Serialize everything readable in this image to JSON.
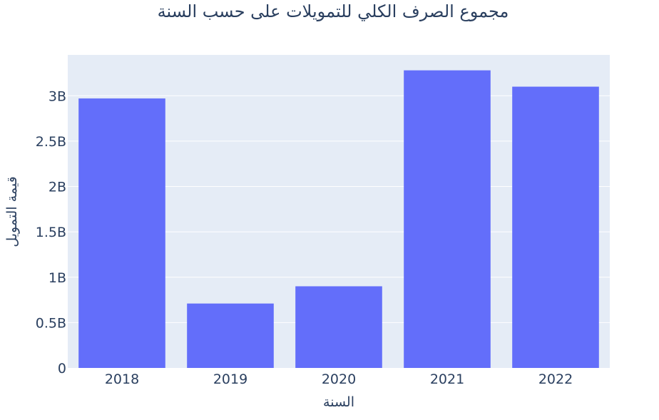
{
  "chart_data": {
    "type": "bar",
    "title": "مجموع الصرف الكلي للتمويلات على حسب السنة",
    "xlabel": "السنة",
    "ylabel": "قيمة التمويل",
    "categories": [
      "2018",
      "2019",
      "2020",
      "2021",
      "2022"
    ],
    "values": [
      2970000000,
      710000000,
      900000000,
      3280000000,
      3100000000
    ],
    "ylim": [
      0,
      3450000000
    ],
    "yticks": [
      {
        "value": 0,
        "label": "0"
      },
      {
        "value": 500000000,
        "label": "0.5B"
      },
      {
        "value": 1000000000,
        "label": "1B"
      },
      {
        "value": 1500000000,
        "label": "1.5B"
      },
      {
        "value": 2000000000,
        "label": "2B"
      },
      {
        "value": 2500000000,
        "label": "2.5B"
      },
      {
        "value": 3000000000,
        "label": "3B"
      }
    ],
    "grid": true,
    "colors": {
      "bar": "#636efa",
      "plot_bg": "#e5ecf6",
      "grid": "#ffffff",
      "text": "#2a3f5f"
    }
  }
}
